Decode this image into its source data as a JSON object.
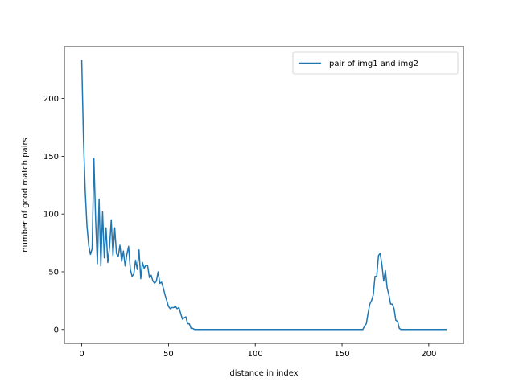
{
  "chart_data": {
    "type": "line",
    "title": "",
    "xlabel": "distance in index",
    "ylabel": "number of good match pairs",
    "xlim": [
      -10,
      220
    ],
    "ylim": [
      -12,
      245
    ],
    "xticks": [
      0,
      50,
      100,
      150,
      200
    ],
    "yticks": [
      0,
      50,
      100,
      150,
      200
    ],
    "grid": false,
    "legend_position": "top-right",
    "series": [
      {
        "name": "pair of img1 and img2",
        "color": "#1f77b4",
        "x": [
          0,
          1,
          2,
          3,
          4,
          5,
          6,
          7,
          8,
          9,
          10,
          11,
          12,
          13,
          14,
          15,
          16,
          17,
          18,
          19,
          20,
          21,
          22,
          23,
          24,
          25,
          26,
          27,
          28,
          29,
          30,
          31,
          32,
          33,
          34,
          35,
          36,
          37,
          38,
          39,
          40,
          41,
          42,
          43,
          44,
          45,
          46,
          47,
          48,
          49,
          50,
          51,
          52,
          53,
          54,
          55,
          56,
          57,
          58,
          59,
          60,
          61,
          62,
          63,
          64,
          65,
          66,
          67,
          68,
          69,
          70,
          75,
          80,
          85,
          90,
          95,
          100,
          105,
          110,
          115,
          120,
          125,
          130,
          135,
          140,
          145,
          150,
          155,
          160,
          161,
          162,
          163,
          164,
          165,
          166,
          167,
          168,
          169,
          170,
          171,
          172,
          173,
          174,
          175,
          176,
          177,
          178,
          179,
          180,
          181,
          182,
          183,
          184,
          185,
          190,
          195,
          200,
          205,
          210
        ],
        "y": [
          233,
          165,
          120,
          90,
          73,
          65,
          70,
          148,
          95,
          57,
          113,
          55,
          102,
          62,
          88,
          58,
          71,
          95,
          64,
          88,
          66,
          63,
          73,
          59,
          68,
          55,
          65,
          72,
          52,
          46,
          48,
          60,
          52,
          69,
          44,
          58,
          53,
          56,
          55,
          45,
          47,
          42,
          40,
          42,
          50,
          40,
          41,
          36,
          30,
          25,
          20,
          18,
          19,
          19,
          20,
          18,
          19,
          14,
          9,
          10,
          11,
          5,
          5,
          1,
          1,
          0,
          0,
          0,
          0,
          0,
          0,
          0,
          0,
          0,
          0,
          0,
          0,
          0,
          0,
          0,
          0,
          0,
          0,
          0,
          0,
          0,
          0,
          0,
          0,
          0,
          0,
          3,
          5,
          14,
          22,
          25,
          30,
          46,
          46,
          64,
          66,
          56,
          42,
          51,
          36,
          30,
          22,
          22,
          18,
          8,
          7,
          1,
          0,
          0,
          0,
          0,
          0,
          0,
          0
        ]
      }
    ]
  }
}
